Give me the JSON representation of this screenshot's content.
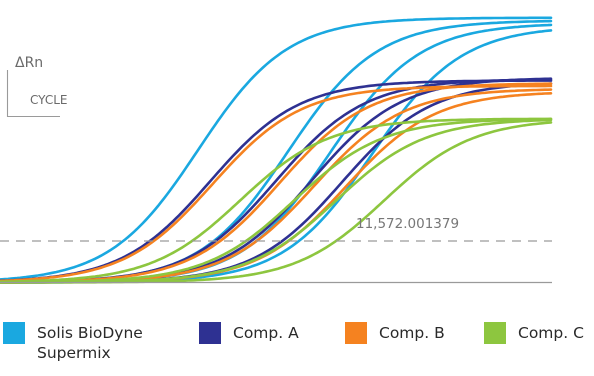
{
  "chart_data": {
    "type": "line",
    "ylabel": "ΔRn",
    "xlabel": "CYCLE",
    "threshold": {
      "label": "11,572.001379"
    },
    "colors": {
      "Solis BioDyne Supermix": "#1aa8e0",
      "Comp. A": "#2e3192",
      "Comp. B": "#f58220",
      "Comp. C": "#8dc63f",
      "axis": "#9a9a9a",
      "threshold": "#9a9a9a"
    },
    "series": [
      {
        "name": "Solis BioDyne Supermix",
        "curves": [
          {
            "midpoint": 16.5,
            "plateau": 9.7
          },
          {
            "midpoint": 24.0,
            "plateau": 9.6
          },
          {
            "midpoint": 27.5,
            "plateau": 9.5
          },
          {
            "midpoint": 31.0,
            "plateau": 9.4
          }
        ]
      },
      {
        "name": "Comp. A",
        "curves": [
          {
            "midpoint": 17.5,
            "plateau": 7.4
          },
          {
            "midpoint": 23.0,
            "plateau": 7.45
          },
          {
            "midpoint": 26.0,
            "plateau": 7.5
          },
          {
            "midpoint": 28.5,
            "plateau": 7.35
          }
        ]
      },
      {
        "name": "Comp. B",
        "curves": [
          {
            "midpoint": 17.7,
            "plateau": 7.2
          },
          {
            "midpoint": 23.3,
            "plateau": 7.3
          },
          {
            "midpoint": 26.2,
            "plateau": 7.1
          },
          {
            "midpoint": 28.8,
            "plateau": 7.0
          }
        ]
      },
      {
        "name": "Comp. C",
        "curves": [
          {
            "midpoint": 20.0,
            "plateau": 6.0
          },
          {
            "midpoint": 24.5,
            "plateau": 6.0
          },
          {
            "midpoint": 28.0,
            "plateau": 6.0
          },
          {
            "midpoint": 32.0,
            "plateau": 6.0
          }
        ]
      }
    ]
  },
  "legend": [
    {
      "label": "Solis BioDyne Supermix",
      "color": "#1aa8e0"
    },
    {
      "label": "Comp. A",
      "color": "#2e3192"
    },
    {
      "label": "Comp. B",
      "color": "#f58220"
    },
    {
      "label": "Comp. C",
      "color": "#8dc63f"
    }
  ]
}
